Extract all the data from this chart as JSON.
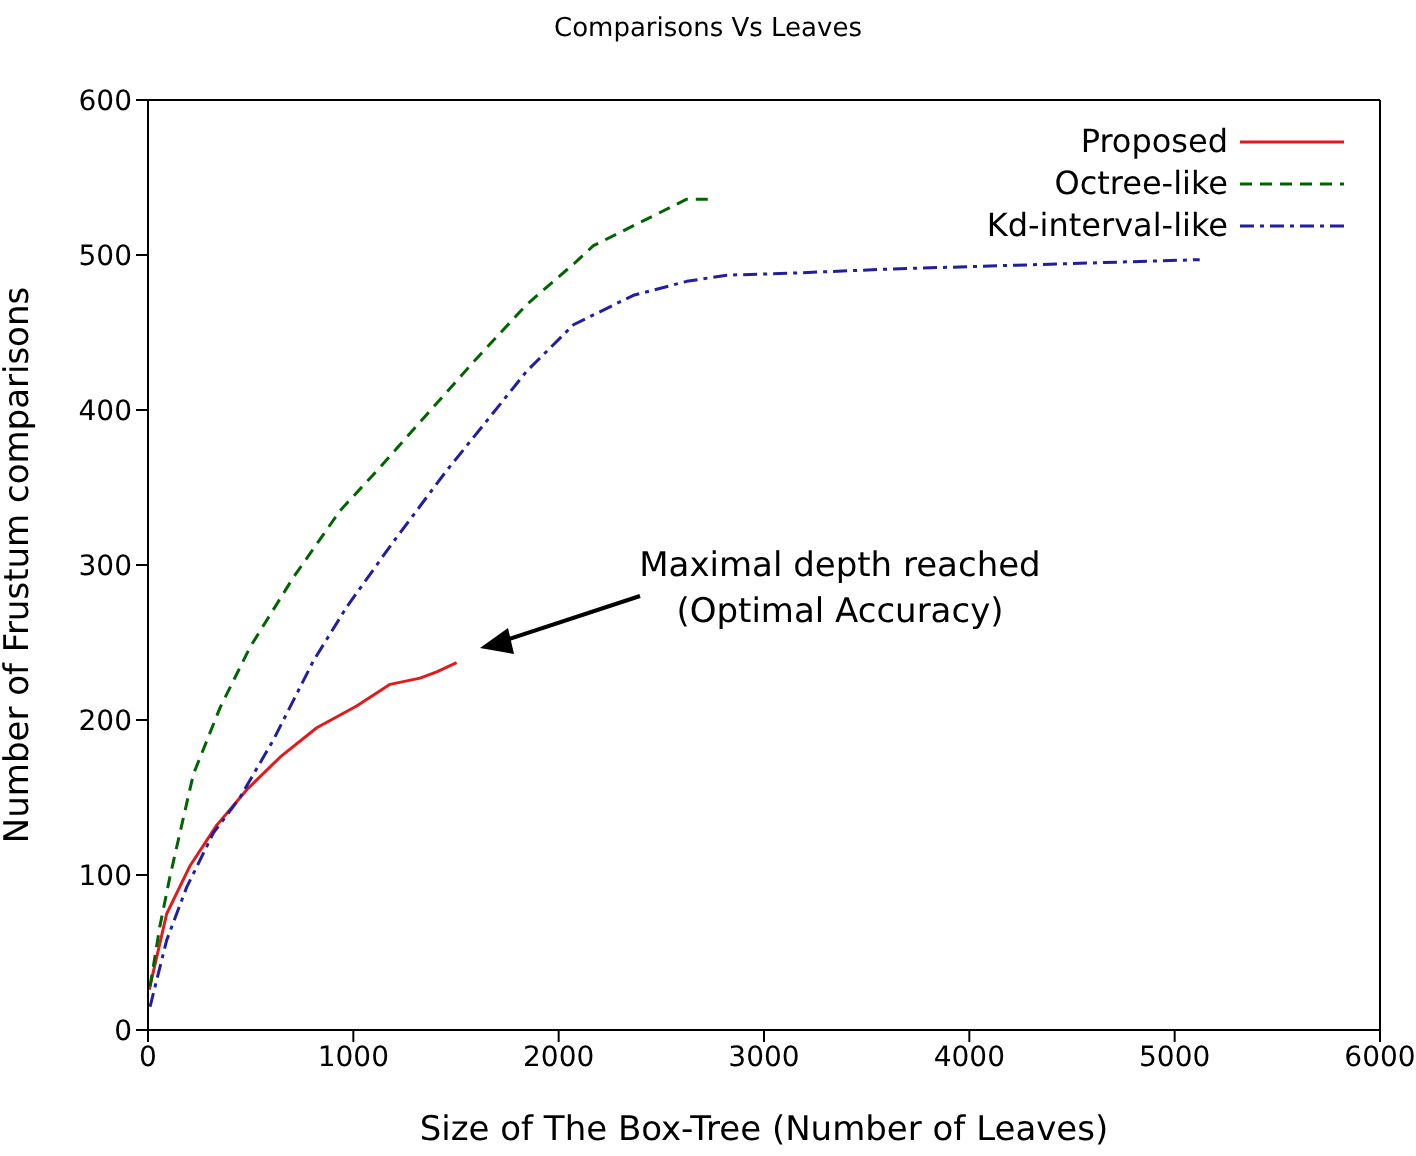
{
  "chart_data": {
    "type": "line",
    "title": "Comparisons Vs Leaves",
    "xlabel": "Size of The Box-Tree (Number of Leaves)",
    "ylabel": "Number of Frustum comparisons",
    "xlim": [
      0,
      6000
    ],
    "xticks": [
      0,
      1000,
      2000,
      3000,
      4000,
      5000,
      6000
    ],
    "ylim": [
      0,
      600
    ],
    "yticks": [
      0,
      100,
      200,
      300,
      400,
      500,
      600
    ],
    "legend": "top right",
    "annotations": [
      "Maximal depth reached\n(Optimal Accuracy)"
    ],
    "series": [
      {
        "name": "Proposed",
        "color": "#e31a1c",
        "line_style": "solid",
        "x": [
          6,
          91,
          205,
          334,
          481,
          643,
          822,
          1016,
          1179,
          1325,
          1406,
          1503
        ],
        "values": [
          26,
          75,
          106,
          132,
          155,
          176,
          195,
          209,
          223,
          227,
          231,
          237
        ]
      },
      {
        "name": "Octree-like",
        "color": "#006400",
        "line_style": "dashed",
        "x": [
          10,
          58,
          107,
          221,
          351,
          497,
          708,
          935,
          1130,
          1357,
          1585,
          1844,
          2088,
          2169,
          2396,
          2624,
          2737
        ],
        "values": [
          28,
          67,
          99,
          165,
          208,
          247,
          292,
          335,
          363,
          397,
          431,
          468,
          496,
          506,
          521,
          536,
          536
        ]
      },
      {
        "name": "Kd-interval-like",
        "color": "#1f1fa0",
        "line_style": "dashdot",
        "x": [
          10,
          91,
          188,
          318,
          448,
          610,
          805,
          968,
          1195,
          1455,
          1650,
          1844,
          2072,
          2364,
          2624,
          2818,
          3078,
          3629,
          5122
        ],
        "values": [
          15,
          58,
          92,
          127,
          150,
          187,
          238,
          273,
          315,
          361,
          393,
          425,
          455,
          474,
          483,
          487,
          488,
          491,
          497
        ]
      }
    ]
  }
}
